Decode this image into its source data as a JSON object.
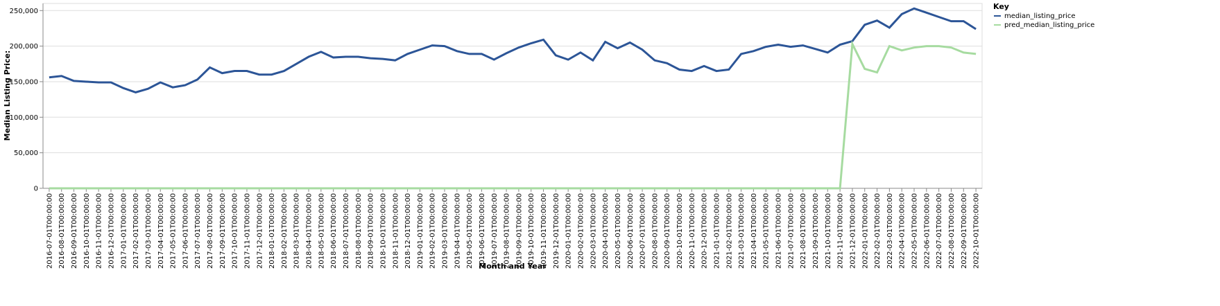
{
  "chart_data": {
    "type": "line",
    "x_label": "Month and Year",
    "y_label": "Median Listing Price:",
    "legend_title": "Key",
    "legend_position": "right",
    "grid": true,
    "categories": [
      "2016-07-01T00:00:00",
      "2016-08-01T00:00:00",
      "2016-09-01T00:00:00",
      "2016-10-01T00:00:00",
      "2016-11-01T00:00:00",
      "2016-12-01T00:00:00",
      "2017-01-01T00:00:00",
      "2017-02-01T00:00:00",
      "2017-03-01T00:00:00",
      "2017-04-01T00:00:00",
      "2017-05-01T00:00:00",
      "2017-06-01T00:00:00",
      "2017-07-01T00:00:00",
      "2017-08-01T00:00:00",
      "2017-09-01T00:00:00",
      "2017-10-01T00:00:00",
      "2017-11-01T00:00:00",
      "2017-12-01T00:00:00",
      "2018-01-01T00:00:00",
      "2018-02-01T00:00:00",
      "2018-03-01T00:00:00",
      "2018-04-01T00:00:00",
      "2018-05-01T00:00:00",
      "2018-06-01T00:00:00",
      "2018-07-01T00:00:00",
      "2018-08-01T00:00:00",
      "2018-09-01T00:00:00",
      "2018-10-01T00:00:00",
      "2018-11-01T00:00:00",
      "2018-12-01T00:00:00",
      "2019-01-01T00:00:00",
      "2019-02-01T00:00:00",
      "2019-03-01T00:00:00",
      "2019-04-01T00:00:00",
      "2019-05-01T00:00:00",
      "2019-06-01T00:00:00",
      "2019-07-01T00:00:00",
      "2019-08-01T00:00:00",
      "2019-09-01T00:00:00",
      "2019-10-01T00:00:00",
      "2019-11-01T00:00:00",
      "2019-12-01T00:00:00",
      "2020-01-01T00:00:00",
      "2020-02-01T00:00:00",
      "2020-03-01T00:00:00",
      "2020-04-01T00:00:00",
      "2020-05-01T00:00:00",
      "2020-06-01T00:00:00",
      "2020-07-01T00:00:00",
      "2020-08-01T00:00:00",
      "2020-09-01T00:00:00",
      "2020-10-01T00:00:00",
      "2020-11-01T00:00:00",
      "2020-12-01T00:00:00",
      "2021-01-01T00:00:00",
      "2021-02-01T00:00:00",
      "2021-03-01T00:00:00",
      "2021-04-01T00:00:00",
      "2021-05-01T00:00:00",
      "2021-06-01T00:00:00",
      "2021-07-01T00:00:00",
      "2021-08-01T00:00:00",
      "2021-09-01T00:00:00",
      "2021-10-01T00:00:00",
      "2021-11-01T00:00:00",
      "2021-12-01T00:00:00",
      "2022-01-01T00:00:00",
      "2022-02-01T00:00:00",
      "2022-03-01T00:00:00",
      "2022-04-01T00:00:00",
      "2022-05-01T00:00:00",
      "2022-06-01T00:00:00",
      "2022-07-01T00:00:00",
      "2022-08-01T00:00:00",
      "2022-09-01T00:00:00",
      "2022-10-01T00:00:00"
    ],
    "series": [
      {
        "name": "median_listing_price",
        "color": "#2c5597",
        "values": [
          156000,
          158000,
          151000,
          150000,
          149000,
          149000,
          141000,
          135000,
          140000,
          149000,
          142000,
          145000,
          153000,
          170000,
          162000,
          165000,
          165000,
          160000,
          160000,
          165000,
          175000,
          185000,
          192000,
          184000,
          185000,
          185000,
          183000,
          182000,
          180000,
          189000,
          195000,
          201000,
          200000,
          193000,
          189000,
          189000,
          181000,
          190000,
          198000,
          204000,
          209000,
          187000,
          181000,
          191000,
          180000,
          206000,
          197000,
          205000,
          195000,
          180000,
          176000,
          167000,
          165000,
          172000,
          165000,
          167000,
          189000,
          193000,
          199000,
          202000,
          199000,
          201000,
          196000,
          191000,
          202000,
          207000,
          230000,
          236000,
          226000,
          245000,
          253000,
          247000,
          241000,
          235000,
          235000,
          224000
        ]
      },
      {
        "name": "pred_median_listing_price",
        "color": "#a6dba0",
        "values": [
          0,
          0,
          0,
          0,
          0,
          0,
          0,
          0,
          0,
          0,
          0,
          0,
          0,
          0,
          0,
          0,
          0,
          0,
          0,
          0,
          0,
          0,
          0,
          0,
          0,
          0,
          0,
          0,
          0,
          0,
          0,
          0,
          0,
          0,
          0,
          0,
          0,
          0,
          0,
          0,
          0,
          0,
          0,
          0,
          0,
          0,
          0,
          0,
          0,
          0,
          0,
          0,
          0,
          0,
          0,
          0,
          0,
          0,
          0,
          0,
          0,
          0,
          0,
          0,
          0,
          203000,
          168000,
          163000,
          200000,
          194000,
          198000,
          200000,
          200000,
          198000,
          191000,
          189000
        ]
      }
    ],
    "ylim": [
      0,
      260000
    ],
    "yticks": [
      0,
      {
        "value": 50000,
        "label": "50,000"
      },
      {
        "value": 100000,
        "label": "100,000"
      },
      {
        "value": 150000,
        "label": "150,000"
      },
      {
        "value": 200000,
        "label": "200,000"
      },
      {
        "value": 250000,
        "label": "250,000"
      }
    ]
  }
}
